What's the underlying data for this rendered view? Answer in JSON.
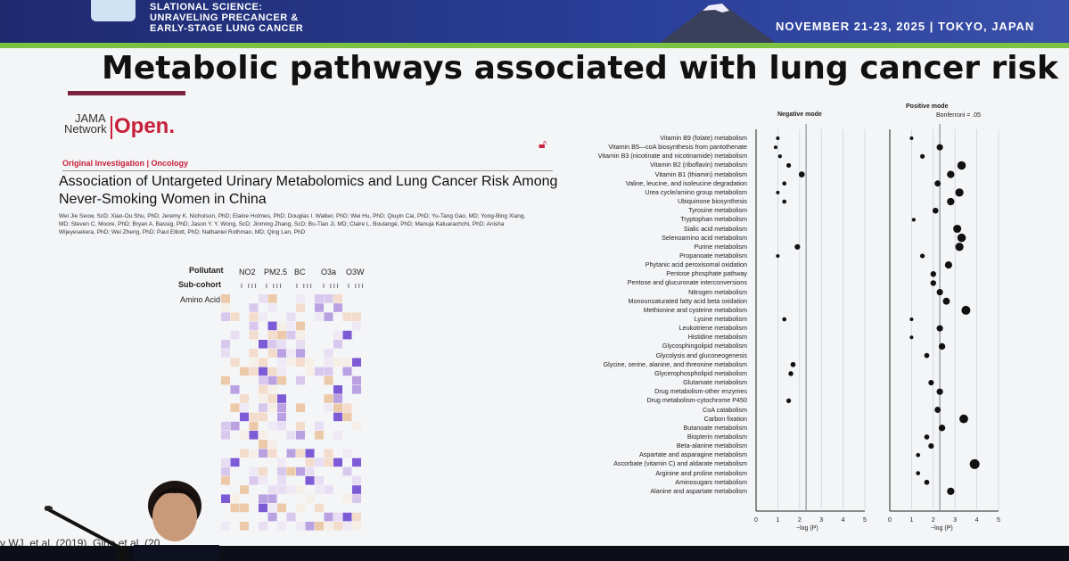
{
  "banner": {
    "line1": "SLATIONAL SCIENCE:",
    "line2": "UNRAVELING PRECANCER &",
    "line3": "EARLY-STAGE LUNG CANCER",
    "date": "NOVEMBER 21-23, 2025  |  TOKYO, JAPAN"
  },
  "slide_title": "Metabolic pathways associated with lung cancer risk",
  "journal": {
    "brand_top": "JAMA",
    "brand_bottom": "Network",
    "open": "Open."
  },
  "article": {
    "type_label": "Original Investigation | Oncology",
    "title": "Association of Untargeted Urinary Metabolomics and Lung Cancer Risk Among Never-Smoking Women in China",
    "authors": "Wei Jie Seow, ScD; Xiao-Ou Shu, PhD; Jeremy K. Nicholson, PhD; Elaine Holmes, PhD; Douglas I. Walker, PhD; Wei Hu, PhD; Qiuyin Cai, PhD; Yu-Tang Gao, MD; Yong-Bing Xiang, MD; Steven C. Moore, PhD; Bryan A. Bassig, PhD; Jason Y. Y. Wong, ScD; Jinming Zhang, ScD; Bu-Tian Ji, MD; Claire L. Boulangé, PhD; Manuja Kaluarachchi, PhD; Anisha Wijeyesekera, PhD; Wei Zheng, PhD; Paul Elliott, PhD; Nathaniel Rothman, MD; Qing Lan, PhD"
  },
  "heatmap": {
    "row_label_pollutant": "Pollutant",
    "row_label_subcohort": "Sub-cohort",
    "row_label_aa": "Amino Acid",
    "pollutants": [
      "NO2",
      "PM2.5",
      "BC",
      "O3a",
      "O3W"
    ],
    "subcohort_marks": "I  III"
  },
  "plot": {
    "neg_title": "Negative mode",
    "pos_title": "Positive mode",
    "bonferroni": "Bonferroni = .05",
    "xlabel": "−log (P)",
    "ticks": [
      "0",
      "1",
      "2",
      "3",
      "4",
      "5"
    ]
  },
  "pathways": [
    "Vitamin B9 (folate) metabolism",
    "Vitamin B5—coA biosynthesis from pantothenate",
    "Vitamin B3 (nicotinate and nicotinamide) metabolism",
    "Vitamin B2 (riboflavin) metabolism",
    "Vitamin B1 (thiamin) metabolism",
    "Valine, leucine, and isoleucine degradation",
    "Urea cycle/amino group metabolism",
    "Ubiquinone biosynthesis",
    "Tyrosine metabolism",
    "Tryptophan metabolism",
    "Sialic acid metabolism",
    "Selenoamino acid metabolism",
    "Purine metabolism",
    "Propanoate metabolism",
    "Phytanic acid peroxisomal oxidation",
    "Pentose phosphate pathway",
    "Pentose and glucuronate interconversions",
    "Nitrogen metabolism",
    "Monounsaturated fatty acid beta oxidation",
    "Methionine and cysteine metabolism",
    "Lysine metabolism",
    "Leukotriene metabolism",
    "Histidine metabolism",
    "Glycosphingolipid metabolism",
    "Glycolysis and gluconeogenesis",
    "Glycine, serine, alanine, and threonine metabolism",
    "Glycerophospholipid metabolism",
    "Glutamate metabolism",
    "Drug metabolism-other enzymes",
    "Drug metabolism-cytochrome P450",
    "CoA catabolism",
    "Carbon fixation",
    "Butanoate metabolism",
    "Biopterin metabolism",
    "Beta-alanine metabolism",
    "Aspartate and asparagine metabolism",
    "Ascorbate (vitamin C) and aldarate metabolism",
    "Arginine and proline metabolism",
    "Aminosugars metabolism",
    "Alanine and aspartate metabolism"
  ],
  "chart_data": {
    "type": "scatter",
    "neg_values": [
      1.0,
      0.9,
      1.1,
      1.5,
      2.1,
      1.3,
      1.0,
      1.3,
      null,
      null,
      null,
      null,
      1.9,
      1.0,
      null,
      null,
      null,
      null,
      null,
      null,
      1.3,
      null,
      null,
      null,
      null,
      1.7,
      1.6,
      null,
      null,
      1.5,
      null,
      null,
      null,
      null,
      null,
      null,
      null,
      null,
      null,
      null
    ],
    "pos_values": [
      1.0,
      2.3,
      1.5,
      3.3,
      2.8,
      2.2,
      3.2,
      2.8,
      2.1,
      1.1,
      3.1,
      3.3,
      3.2,
      1.5,
      2.7,
      2.0,
      2.0,
      2.3,
      2.6,
      3.5,
      1.0,
      2.3,
      1.0,
      2.4,
      1.7,
      null,
      null,
      1.9,
      2.3,
      null,
      2.2,
      3.4,
      2.4,
      1.7,
      1.9,
      1.3,
      3.9,
      1.3,
      1.7,
      2.8
    ],
    "bonferroni": 2.3,
    "xlim": [
      0,
      5
    ]
  },
  "footer": {
    "citation": "v WJ. et al. (2019), Gino et al. (20"
  }
}
